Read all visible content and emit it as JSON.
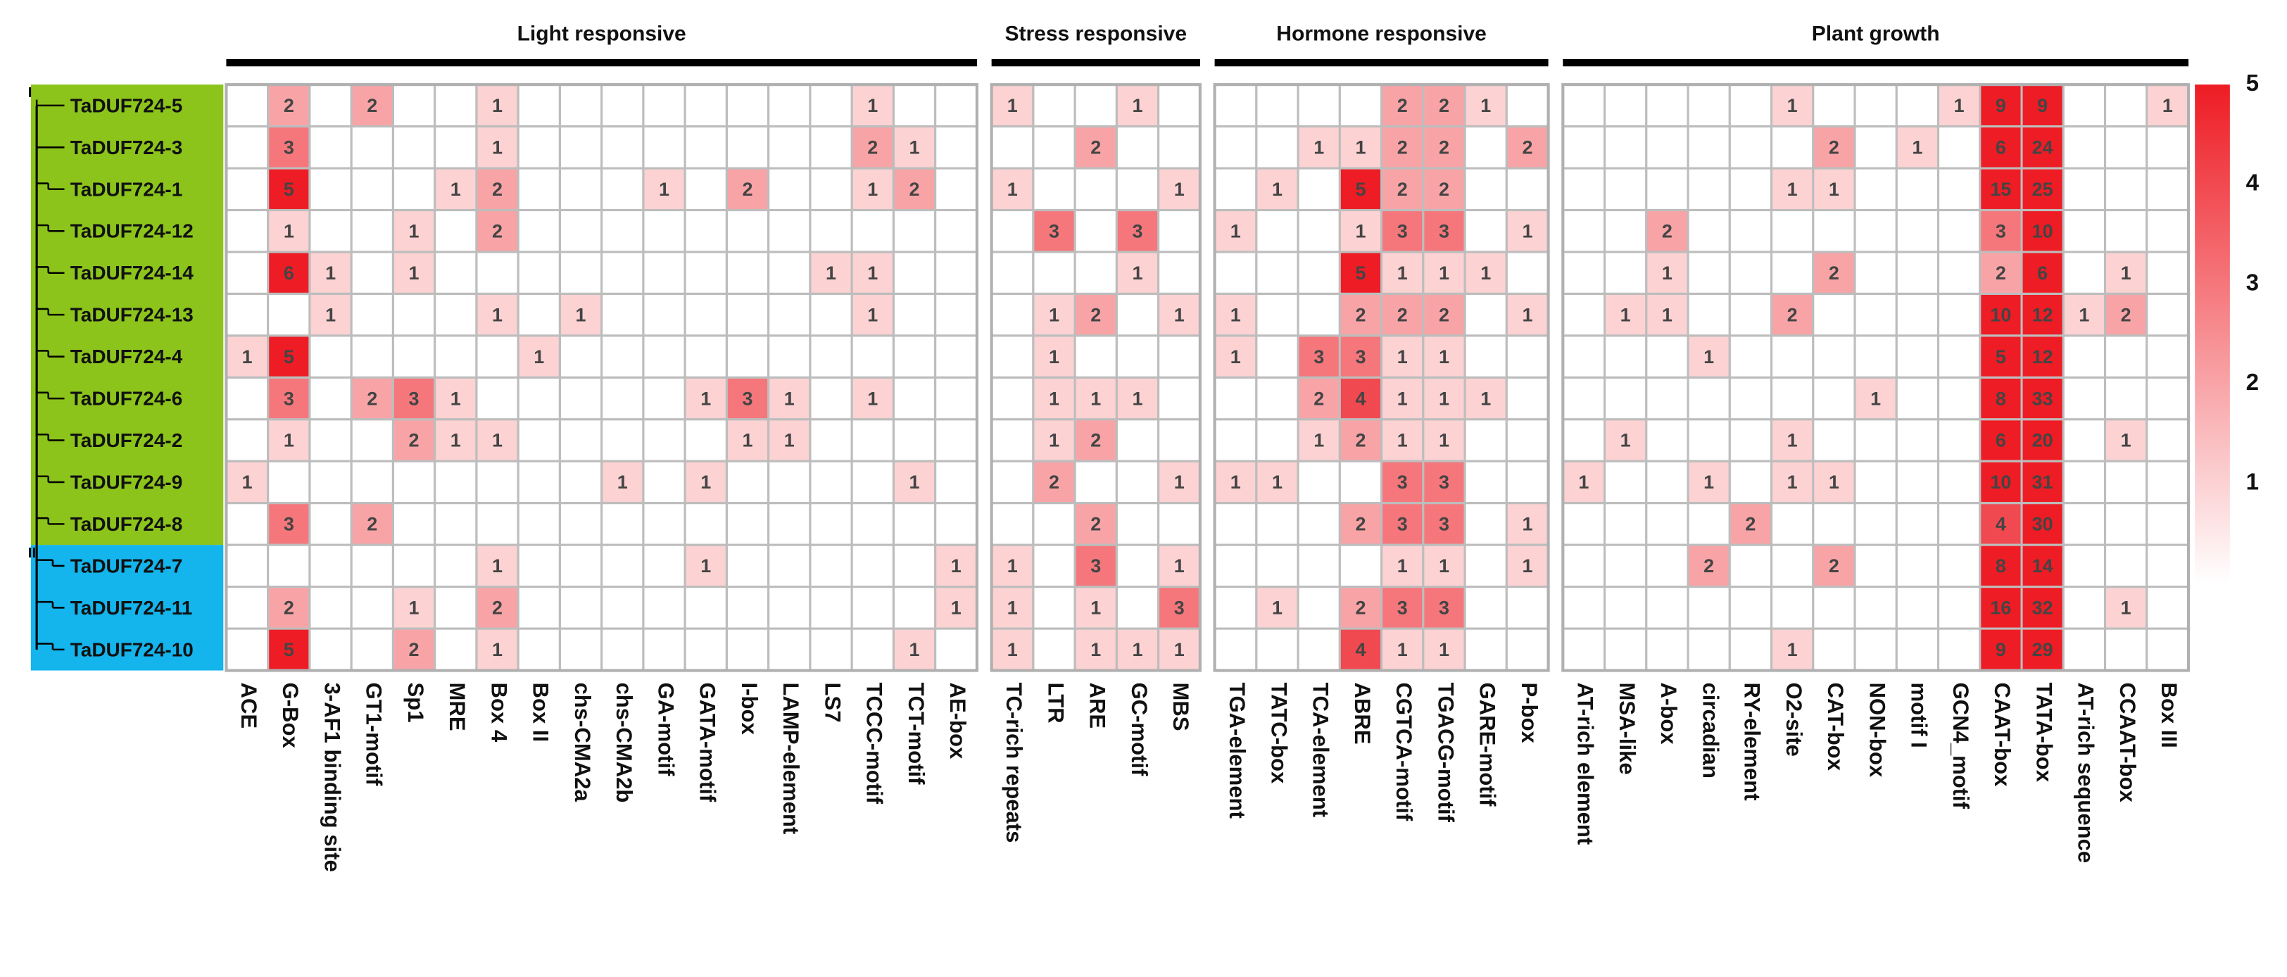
{
  "chart_data": {
    "type": "heatmap",
    "groups": [
      {
        "name": "Light responsive",
        "columns": [
          "ACE",
          "G-Box",
          "3-AF1 binding site",
          "GT1-motif",
          "Sp1",
          "MRE",
          "Box 4",
          "Box II",
          "chs-CMA2a",
          "chs-CMA2b",
          "GA-motif",
          "GATA-motif",
          "I-box",
          "LAMP-element",
          "LS7",
          "TCCC-motif",
          "TCT-motif",
          "AE-box"
        ]
      },
      {
        "name": "Stress responsive",
        "columns": [
          "TC-rich repeats",
          "LTR",
          "ARE",
          "GC-motif",
          "MBS"
        ]
      },
      {
        "name": "Hormone responsive",
        "columns": [
          "TGA-element",
          "TATC-box",
          "TCA-element",
          "ABRE",
          "CGTCA-motif",
          "TGACG-motif",
          "GARE-motif",
          "P-box"
        ]
      },
      {
        "name": "Plant growth",
        "columns": [
          "AT-rich element",
          "MSA-like",
          "A-box",
          "circadian",
          "RY-element",
          "O2-site",
          "CAT-box",
          "NON-box",
          "motif I",
          "GCN4_motif",
          "CAAT-box",
          "TATA-box",
          "AT-rich sequence",
          "CCAAT-box",
          "Box III"
        ]
      }
    ],
    "rows": [
      "TaDUF724-5",
      "TaDUF724-3",
      "TaDUF724-1",
      "TaDUF724-12",
      "TaDUF724-14",
      "TaDUF724-13",
      "TaDUF724-4",
      "TaDUF724-6",
      "TaDUF724-2",
      "TaDUF724-9",
      "TaDUF724-8",
      "TaDUF724-7",
      "TaDUF724-11",
      "TaDUF724-10"
    ],
    "clades": [
      {
        "label": "I",
        "color": "#8cc41c",
        "count": 11
      },
      {
        "label": "II",
        "color": "#14b4ec",
        "count": 3
      }
    ],
    "values": [
      [
        null,
        2,
        null,
        2,
        null,
        null,
        1,
        null,
        null,
        null,
        null,
        null,
        null,
        null,
        null,
        1,
        null,
        null,
        1,
        null,
        null,
        1,
        null,
        null,
        null,
        null,
        null,
        2,
        2,
        1,
        null,
        null,
        null,
        null,
        null,
        null,
        1,
        null,
        null,
        null,
        1,
        9,
        9,
        null,
        null,
        1
      ],
      [
        null,
        3,
        null,
        null,
        null,
        null,
        1,
        null,
        null,
        null,
        null,
        null,
        null,
        null,
        null,
        2,
        1,
        null,
        null,
        null,
        2,
        null,
        null,
        null,
        null,
        1,
        1,
        2,
        2,
        null,
        2,
        null,
        null,
        null,
        null,
        null,
        null,
        2,
        null,
        1,
        null,
        6,
        24,
        null,
        null,
        null
      ],
      [
        null,
        5,
        null,
        null,
        null,
        1,
        2,
        null,
        null,
        null,
        1,
        null,
        2,
        null,
        null,
        1,
        2,
        null,
        1,
        null,
        null,
        null,
        1,
        null,
        1,
        null,
        5,
        2,
        2,
        null,
        null,
        null,
        null,
        null,
        null,
        null,
        1,
        1,
        null,
        null,
        null,
        15,
        25,
        null,
        null,
        null
      ],
      [
        null,
        1,
        null,
        null,
        1,
        null,
        2,
        null,
        null,
        null,
        null,
        null,
        null,
        null,
        null,
        null,
        null,
        null,
        null,
        3,
        null,
        3,
        null,
        1,
        null,
        null,
        1,
        3,
        3,
        null,
        1,
        null,
        null,
        2,
        null,
        null,
        null,
        null,
        null,
        null,
        null,
        3,
        10,
        null,
        null,
        null
      ],
      [
        null,
        6,
        1,
        null,
        1,
        null,
        null,
        null,
        null,
        null,
        null,
        null,
        null,
        null,
        1,
        1,
        null,
        null,
        null,
        null,
        null,
        1,
        null,
        null,
        null,
        null,
        5,
        1,
        1,
        1,
        null,
        null,
        null,
        1,
        null,
        null,
        null,
        2,
        null,
        null,
        null,
        2,
        6,
        null,
        1,
        null
      ],
      [
        null,
        null,
        1,
        null,
        null,
        null,
        1,
        null,
        1,
        null,
        null,
        null,
        null,
        null,
        null,
        1,
        null,
        null,
        null,
        1,
        2,
        null,
        1,
        1,
        null,
        null,
        2,
        2,
        2,
        null,
        1,
        null,
        1,
        1,
        null,
        null,
        2,
        null,
        null,
        null,
        null,
        10,
        12,
        1,
        2,
        null
      ],
      [
        1,
        5,
        null,
        null,
        null,
        null,
        null,
        1,
        null,
        null,
        null,
        null,
        null,
        null,
        null,
        null,
        null,
        null,
        null,
        1,
        null,
        null,
        null,
        1,
        null,
        3,
        3,
        1,
        1,
        null,
        null,
        null,
        null,
        null,
        1,
        null,
        null,
        null,
        null,
        null,
        null,
        5,
        12,
        null,
        null,
        null
      ],
      [
        null,
        3,
        null,
        2,
        3,
        1,
        null,
        null,
        null,
        null,
        null,
        1,
        3,
        1,
        null,
        1,
        null,
        null,
        null,
        1,
        1,
        1,
        null,
        null,
        null,
        2,
        4,
        1,
        1,
        1,
        null,
        null,
        null,
        null,
        null,
        null,
        null,
        null,
        1,
        null,
        null,
        8,
        33,
        null,
        null,
        null
      ],
      [
        null,
        1,
        null,
        null,
        2,
        1,
        1,
        null,
        null,
        null,
        null,
        null,
        1,
        1,
        null,
        null,
        null,
        null,
        null,
        1,
        2,
        null,
        null,
        null,
        null,
        1,
        2,
        1,
        1,
        null,
        null,
        null,
        1,
        null,
        null,
        null,
        1,
        null,
        null,
        null,
        null,
        6,
        20,
        null,
        1,
        null
      ],
      [
        1,
        null,
        null,
        null,
        null,
        null,
        null,
        null,
        null,
        1,
        null,
        1,
        null,
        null,
        null,
        null,
        1,
        null,
        null,
        2,
        null,
        null,
        1,
        1,
        1,
        null,
        null,
        3,
        3,
        null,
        null,
        1,
        null,
        null,
        1,
        null,
        1,
        1,
        null,
        null,
        null,
        10,
        31,
        null,
        null,
        null
      ],
      [
        null,
        3,
        null,
        2,
        null,
        null,
        null,
        null,
        null,
        null,
        null,
        null,
        null,
        null,
        null,
        null,
        null,
        null,
        null,
        null,
        2,
        null,
        null,
        null,
        null,
        null,
        2,
        3,
        3,
        null,
        1,
        null,
        null,
        null,
        null,
        2,
        null,
        null,
        null,
        null,
        null,
        4,
        30,
        null,
        null,
        null
      ],
      [
        null,
        null,
        null,
        null,
        null,
        null,
        1,
        null,
        null,
        null,
        null,
        1,
        null,
        null,
        null,
        null,
        null,
        1,
        1,
        null,
        3,
        null,
        1,
        null,
        null,
        null,
        null,
        1,
        1,
        null,
        1,
        null,
        null,
        null,
        2,
        null,
        null,
        2,
        null,
        null,
        null,
        8,
        14,
        null,
        null,
        null
      ],
      [
        null,
        2,
        null,
        null,
        1,
        null,
        2,
        null,
        null,
        null,
        null,
        null,
        null,
        null,
        null,
        null,
        null,
        1,
        1,
        null,
        1,
        null,
        3,
        null,
        1,
        null,
        2,
        3,
        3,
        null,
        null,
        null,
        null,
        null,
        null,
        null,
        null,
        null,
        null,
        null,
        null,
        16,
        32,
        null,
        1,
        null
      ],
      [
        null,
        5,
        null,
        null,
        2,
        null,
        1,
        null,
        null,
        null,
        null,
        null,
        null,
        null,
        null,
        null,
        1,
        null,
        1,
        null,
        1,
        1,
        1,
        null,
        null,
        null,
        4,
        1,
        1,
        null,
        null,
        null,
        null,
        null,
        null,
        null,
        1,
        null,
        null,
        null,
        null,
        9,
        29,
        null,
        null,
        null
      ]
    ],
    "color_low": "#ffffff",
    "color_high": "#ee1c24",
    "colorbar": {
      "lim": [
        0,
        5
      ],
      "ticks": [
        1,
        2,
        3,
        4,
        5
      ]
    }
  }
}
